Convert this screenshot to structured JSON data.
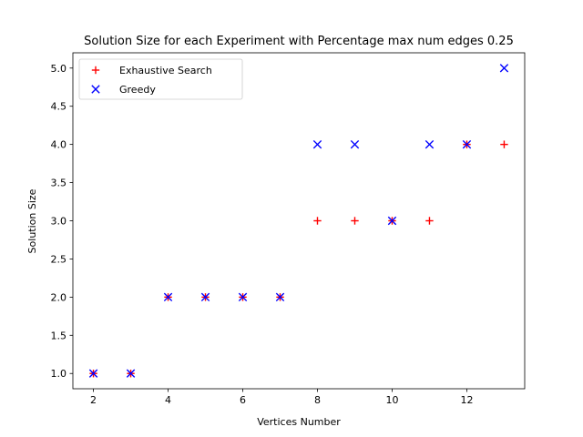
{
  "chart_data": {
    "type": "scatter",
    "title": "Solution Size for each Experiment with Percentage max num edges 0.25",
    "xlabel": "Vertices Number",
    "ylabel": "Solution Size",
    "xlim": [
      1.45,
      13.55
    ],
    "ylim": [
      0.8,
      5.2
    ],
    "x_ticks": [
      2,
      4,
      6,
      8,
      10,
      12
    ],
    "y_ticks": [
      1.0,
      1.5,
      2.0,
      2.5,
      3.0,
      3.5,
      4.0,
      4.5,
      5.0
    ],
    "x_tick_labels": [
      "2",
      "4",
      "6",
      "8",
      "10",
      "12"
    ],
    "y_tick_labels": [
      "1.0",
      "1.5",
      "2.0",
      "2.5",
      "3.0",
      "3.5",
      "4.0",
      "4.5",
      "5.0"
    ],
    "grid": false,
    "legend_position": "top-left",
    "series": [
      {
        "name": "Exhaustive Search",
        "marker": "plus",
        "color": "#ff0000",
        "x": [
          2,
          3,
          4,
          5,
          6,
          7,
          8,
          9,
          10,
          11,
          12,
          13
        ],
        "y": [
          1,
          1,
          2,
          2,
          2,
          2,
          3,
          3,
          3,
          3,
          4,
          4
        ]
      },
      {
        "name": "Greedy",
        "marker": "x",
        "color": "#0000ff",
        "x": [
          2,
          3,
          4,
          5,
          6,
          7,
          8,
          9,
          10,
          11,
          12,
          13
        ],
        "y": [
          1,
          1,
          2,
          2,
          2,
          2,
          4,
          4,
          3,
          4,
          4,
          5
        ]
      }
    ]
  }
}
